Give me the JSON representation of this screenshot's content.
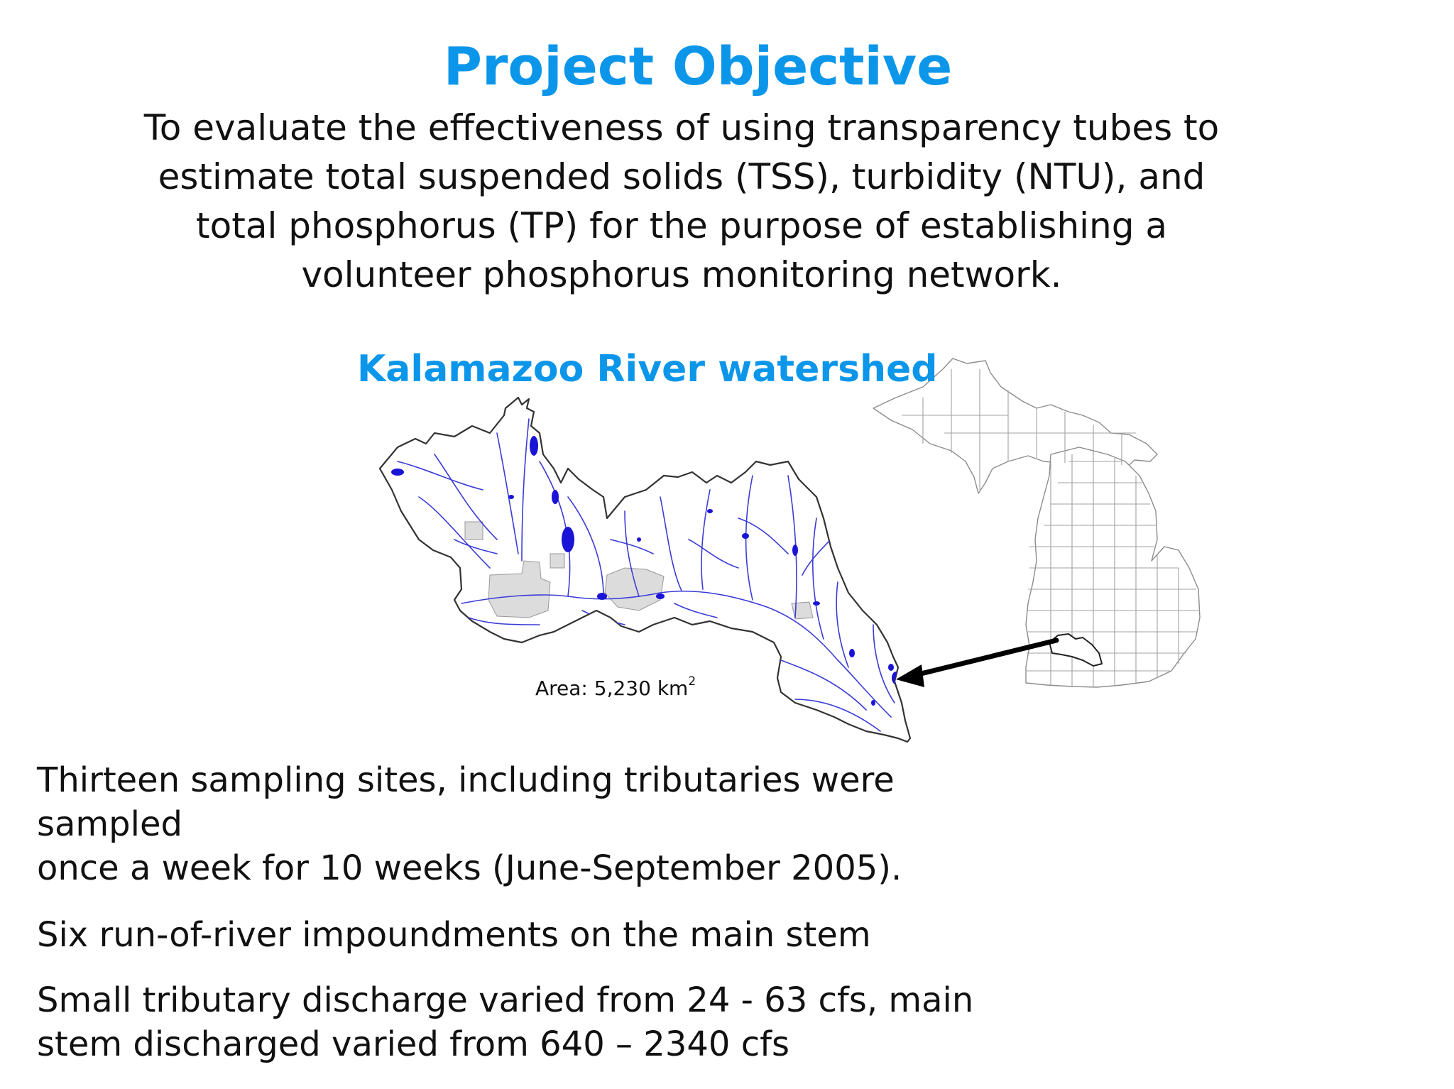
{
  "slide": {
    "title": "Project Objective",
    "objective_lines": [
      "To evaluate the effectiveness of using transparency tubes to",
      "estimate total suspended solids (TSS), turbidity (NTU), and",
      "total phosphorus (TP) for the purpose of establishing a",
      "volunteer phosphorus monitoring network."
    ],
    "map_title": "Kalamazoo River watershed",
    "area_label": "Area: 5,230 km",
    "area_unit_sup": "2",
    "bullets": [
      {
        "line1": "Thirteen sampling sites, including tributaries were sampled",
        "line2": "once a week for 10 weeks (June-September 2005)."
      },
      {
        "line1": "Six run-of-river impoundments on the main stem"
      },
      {
        "line1": "Small tributary discharge varied from 24 - 63 cfs, main",
        "line2": "stem discharged varied from 640 – 2340 cfs"
      }
    ]
  },
  "colors": {
    "heading_blue": "#0b96ea",
    "water_blue": "#1a14d6",
    "stream_blue": "#3b3bd8",
    "urban_gray": "#dcdcdc",
    "county_line": "#9a9a9a"
  }
}
